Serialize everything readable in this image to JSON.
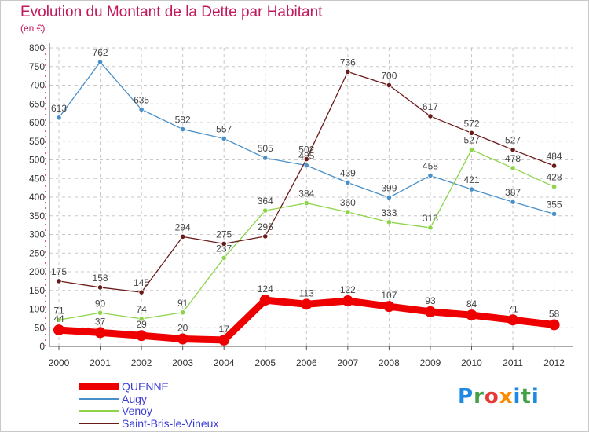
{
  "title": "Evolution du Montant de la Dette par Habitant",
  "subtitle": "(en €)",
  "logo": {
    "text": "Proxiti",
    "colors": [
      "#1e88e5",
      "#43a047",
      "#e53935",
      "#fb8c00",
      "#1e88e5",
      "#43a047",
      "#1e88e5"
    ]
  },
  "chart_data": {
    "type": "line",
    "title": "Evolution du Montant de la Dette par Habitant",
    "ylabel": "(en €)",
    "xlabel": "",
    "x": [
      "2000",
      "2001",
      "2002",
      "2003",
      "2004",
      "2005",
      "2006",
      "2007",
      "2008",
      "2009",
      "2010",
      "2011",
      "2012"
    ],
    "ylim": [
      0,
      800
    ],
    "yticks": [
      0,
      50,
      100,
      150,
      200,
      250,
      300,
      350,
      400,
      450,
      500,
      550,
      600,
      650,
      700,
      750,
      800
    ],
    "grid": true,
    "legend_position": "bottom",
    "series": [
      {
        "name": "QUENNE",
        "color": "#ee0000",
        "values": [
          44,
          37,
          29,
          20,
          17,
          124,
          113,
          122,
          107,
          93,
          84,
          71,
          58
        ]
      },
      {
        "name": "Augy",
        "color": "#4a90c8",
        "values": [
          613,
          762,
          635,
          582,
          557,
          505,
          485,
          439,
          399,
          458,
          421,
          387,
          355
        ]
      },
      {
        "name": "Venoy",
        "color": "#8cd44a",
        "values": [
          71,
          90,
          74,
          91,
          237,
          364,
          384,
          360,
          333,
          318,
          527,
          478,
          428
        ]
      },
      {
        "name": "Saint-Bris-le-Vineux",
        "color": "#6b1a1a",
        "values": [
          175,
          158,
          145,
          294,
          275,
          295,
          502,
          736,
          700,
          617,
          572,
          527,
          484
        ]
      }
    ]
  },
  "legend_label_color": "#3b3bd6"
}
